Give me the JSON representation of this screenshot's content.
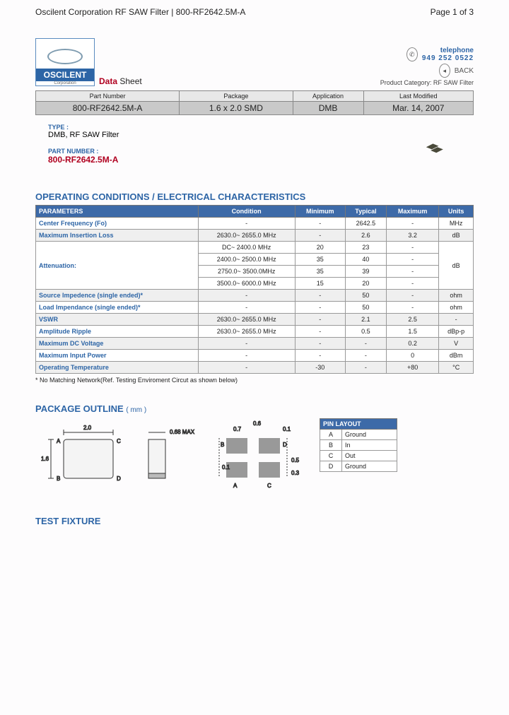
{
  "header": {
    "title": "Oscilent Corporation RF SAW Filter | 800-RF2642.5M-A",
    "page": "Page 1 of 3"
  },
  "logo": {
    "brand": "OSCILENT",
    "sub": "Corporation"
  },
  "ds": {
    "red": "Data",
    "blk": " Sheet"
  },
  "contact": {
    "tel_label": "telephone",
    "tel_num": "949 252 0522",
    "back": "BACK",
    "category": "Product Category: RF SAW Filter"
  },
  "summary": {
    "headers": [
      "Part Number",
      "Package",
      "Application",
      "Last Modified"
    ],
    "values": [
      "800-RF2642.5M-A",
      "1.6 x 2.0 SMD",
      "DMB",
      "Mar. 14, 2007"
    ]
  },
  "meta": {
    "type_label": "TYPE :",
    "type_val": "DMB, RF SAW Filter",
    "pn_label": "PART NUMBER :",
    "pn_val": "800-RF2642.5M-A"
  },
  "sections": {
    "opcond": "OPERATING CONDITIONS / ELECTRICAL CHARACTERISTICS",
    "pkg": "PACKAGE OUTLINE",
    "pkg_unit": "( mm )",
    "test": "TEST FIXTURE"
  },
  "params": {
    "headers": [
      "PARAMETERS",
      "Condition",
      "Minimum",
      "Typical",
      "Maximum",
      "Units"
    ],
    "rows": [
      {
        "p": "Center Frequency (Fo)",
        "c": "-",
        "min": "-",
        "typ": "2642.5",
        "max": "-",
        "u": "MHz",
        "alt": false
      },
      {
        "p": "Maximum Insertion Loss",
        "c": "2630.0~ 2655.0 MHz",
        "min": "-",
        "typ": "2.6",
        "max": "3.2",
        "u": "dB",
        "alt": true
      },
      {
        "p": "Attenuation:",
        "c": "DC~ 2400.0 MHz",
        "min": "20",
        "typ": "23",
        "max": "-",
        "u": "dB",
        "alt": false,
        "rowspan": 4
      },
      {
        "p": "",
        "c": "2400.0~ 2500.0 MHz",
        "min": "35",
        "typ": "40",
        "max": "-",
        "u": "",
        "alt": false,
        "cont": true
      },
      {
        "p": "",
        "c": "2750.0~ 3500.0MHz",
        "min": "35",
        "typ": "39",
        "max": "-",
        "u": "",
        "alt": false,
        "cont": true
      },
      {
        "p": "",
        "c": "3500.0~ 6000.0 MHz",
        "min": "15",
        "typ": "20",
        "max": "-",
        "u": "",
        "alt": false,
        "cont": true
      },
      {
        "p": "Source Impedence (single ended)*",
        "c": "-",
        "min": "-",
        "typ": "50",
        "max": "-",
        "u": "ohm",
        "alt": true
      },
      {
        "p": "Load Impendance (single ended)*",
        "c": "-",
        "min": "-",
        "typ": "50",
        "max": "-",
        "u": "ohm",
        "alt": false
      },
      {
        "p": "VSWR",
        "c": "2630.0~ 2655.0 MHz",
        "min": "-",
        "typ": "2.1",
        "max": "2.5",
        "u": "-",
        "alt": true
      },
      {
        "p": "Amplitude Ripple",
        "c": "2630.0~ 2655.0 MHz",
        "min": "-",
        "typ": "0.5",
        "max": "1.5",
        "u": "dBp-p",
        "alt": false
      },
      {
        "p": "Maximum DC Voltage",
        "c": "-",
        "min": "-",
        "typ": "-",
        "max": "0.2",
        "u": "V",
        "alt": true
      },
      {
        "p": "Maximum Input Power",
        "c": "-",
        "min": "-",
        "typ": "-",
        "max": "0",
        "u": "dBm",
        "alt": false
      },
      {
        "p": "Operating Temperature",
        "c": "-",
        "min": "-30",
        "typ": "-",
        "max": "+80",
        "u": "°C",
        "alt": true
      }
    ],
    "note": "* No Matching Network(Ref. Testing Enviroment Circut as shown below)"
  },
  "pkg_dims": {
    "w": "2.0",
    "h": "1.6",
    "t": "0.68 MAX",
    "a": "0.1",
    "b": "0.7",
    "c": "0.6",
    "d": "0.1",
    "e": "0.5",
    "f": "0.3",
    "labels": [
      "A",
      "B",
      "C",
      "D"
    ]
  },
  "pins": {
    "header": "PIN LAYOUT",
    "rows": [
      [
        "A",
        "Ground"
      ],
      [
        "B",
        "In"
      ],
      [
        "C",
        "Out"
      ],
      [
        "D",
        "Ground"
      ]
    ]
  }
}
